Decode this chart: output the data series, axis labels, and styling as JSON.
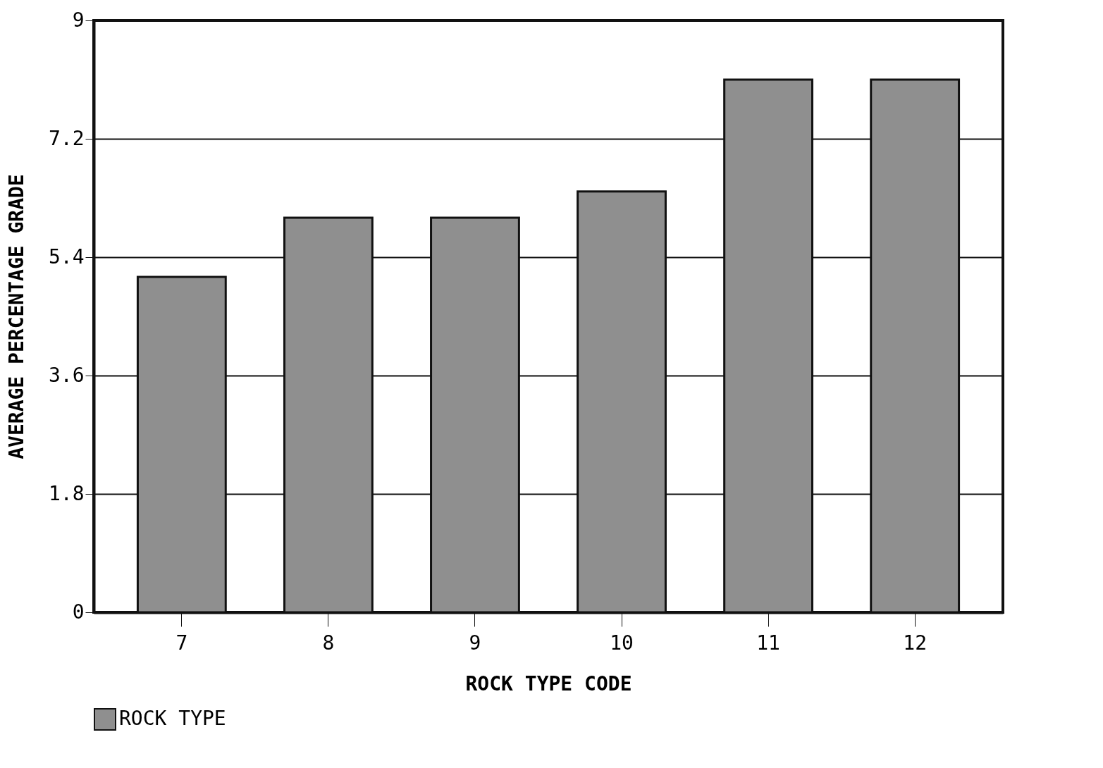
{
  "chart_data": {
    "type": "bar",
    "xlabel": "ROCK TYPE CODE",
    "ylabel": "AVERAGE PERCENTAGE GRADE",
    "categories": [
      "7",
      "8",
      "9",
      "10",
      "11",
      "12"
    ],
    "series": [
      {
        "name": "ROCK TYPE",
        "color": "#8f8f8f",
        "values": [
          5.1,
          6.0,
          6.0,
          6.4,
          8.1,
          8.1
        ]
      }
    ],
    "ylim": [
      0,
      9
    ],
    "yticks": [
      0,
      1.8,
      3.6,
      5.4,
      7.2,
      9
    ],
    "grid": "y",
    "legend": "bottom left"
  }
}
